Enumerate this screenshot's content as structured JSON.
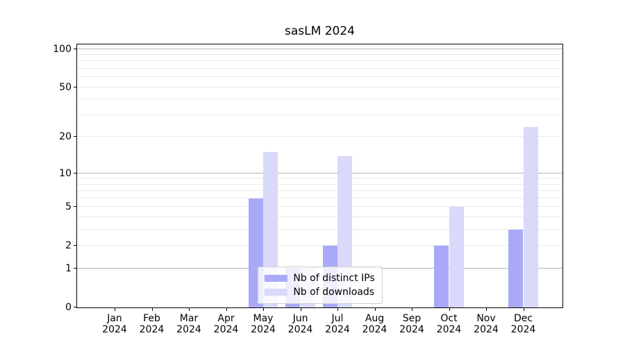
{
  "chart_data": {
    "type": "bar",
    "title": "sasLM 2024",
    "categories": [
      "Jan 2024",
      "Feb 2024",
      "Mar 2024",
      "Apr 2024",
      "May 2024",
      "Jun 2024",
      "Jul 2024",
      "Aug 2024",
      "Sep 2024",
      "Oct 2024",
      "Nov 2024",
      "Dec 2024"
    ],
    "month_labels": [
      "Jan",
      "Feb",
      "Mar",
      "Apr",
      "May",
      "Jun",
      "Jul",
      "Aug",
      "Sep",
      "Oct",
      "Nov",
      "Dec"
    ],
    "year_label": "2024",
    "series": [
      {
        "name": "Nb of distinct IPs",
        "color": "#a9a9f8",
        "values": [
          0,
          0,
          0,
          0,
          6,
          1,
          2,
          0,
          0,
          2,
          0,
          3
        ]
      },
      {
        "name": "Nb of downloads",
        "color": "#d9d9f9",
        "values": [
          0,
          0,
          0,
          0,
          15,
          1,
          14,
          0,
          0,
          5,
          0,
          24
        ]
      }
    ],
    "yscale": "log1p",
    "ylim": [
      0,
      112
    ],
    "yticks": [
      0,
      1,
      2,
      5,
      10,
      20,
      50,
      100
    ],
    "major_gridlines": [
      1,
      10,
      100
    ],
    "minor_gridlines": [
      2,
      3,
      4,
      5,
      6,
      7,
      8,
      9,
      20,
      30,
      40,
      50,
      60,
      70,
      80,
      90
    ],
    "grid": true,
    "legend_position": "lower center"
  },
  "colors": {
    "distinct_ips_bar": "#a9a9f8",
    "downloads_bar": "#d9d9f9",
    "major_grid": "#b4b4b4",
    "minor_grid": "#e9e9e9",
    "axis": "#000000"
  }
}
